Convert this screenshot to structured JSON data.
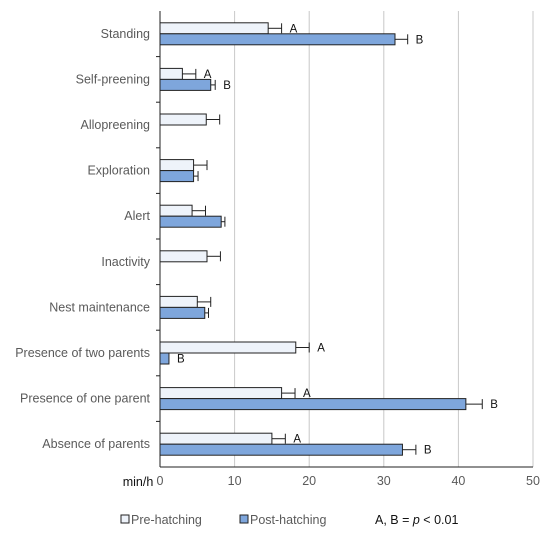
{
  "chart_data": {
    "type": "bar",
    "orientation": "horizontal",
    "categories": [
      "Standing",
      "Self-preening",
      "Allopreening",
      "Exploration",
      "Alert",
      "Inactivity",
      "Nest maintenance",
      "Presence of two parents",
      "Presence of  one parent",
      "Absence of parents"
    ],
    "series": [
      {
        "name": "Pre-hatching",
        "color": "#eef3fa",
        "values": [
          14.5,
          3.0,
          6.2,
          4.5,
          4.3,
          6.3,
          5.0,
          18.2,
          16.3,
          15.0
        ],
        "errors": [
          1.8,
          1.8,
          1.8,
          1.8,
          1.8,
          1.8,
          1.8,
          1.8,
          1.8,
          1.8
        ],
        "sig": [
          "A",
          "A",
          "",
          "",
          "",
          "",
          "",
          "A",
          "A",
          "A"
        ]
      },
      {
        "name": "Post-hatching",
        "color": "#7ea6dc",
        "values": [
          31.5,
          6.8,
          null,
          4.5,
          8.2,
          null,
          6.0,
          1.2,
          41.0,
          32.5
        ],
        "errors": [
          1.7,
          0.6,
          null,
          0.6,
          0.5,
          null,
          0.5,
          0.0,
          2.2,
          1.8
        ],
        "sig": [
          "B",
          "B",
          "",
          "",
          "",
          "",
          "",
          "B",
          "B",
          "B"
        ]
      }
    ],
    "xlabel": "min/h",
    "xlim": [
      0,
      50
    ],
    "xticks": [
      "0",
      "10",
      "20",
      "30",
      "40",
      "50"
    ],
    "grid": "vertical",
    "legend_position": "bottom",
    "note": {
      "prefix": "A, B = ",
      "italic": "p",
      "suffix": " < 0.01"
    }
  }
}
